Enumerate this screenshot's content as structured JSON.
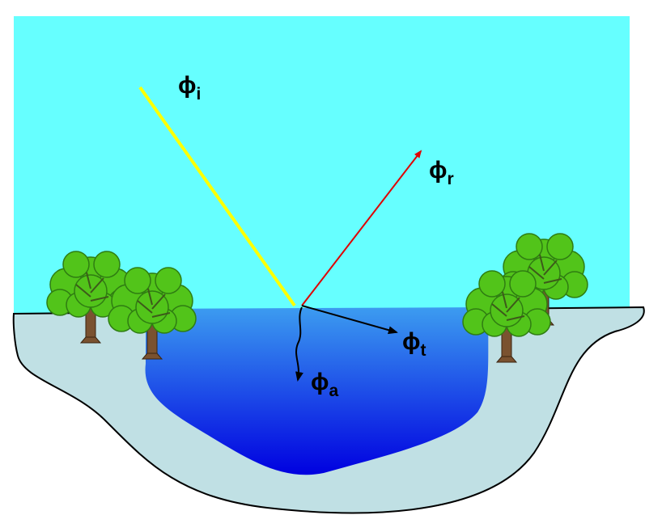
{
  "labels": {
    "incident": {
      "symbol": "ϕ",
      "subscript": "i"
    },
    "reflected": {
      "symbol": "ϕ",
      "subscript": "r"
    },
    "transmitted": {
      "symbol": "ϕ",
      "subscript": "t"
    },
    "absorbed": {
      "symbol": "ϕ",
      "subscript": "a"
    }
  },
  "colors": {
    "sky": "#66ffff",
    "bank": "#c0e0e4",
    "water_top": "#3c9cf0",
    "water_bottom": "#0000e0",
    "incident_ray": "#ffff00",
    "reflected_ray": "#e00000",
    "transmitted_ray": "#000000",
    "foliage": "#52c41a",
    "trunk": "#7a5230"
  }
}
